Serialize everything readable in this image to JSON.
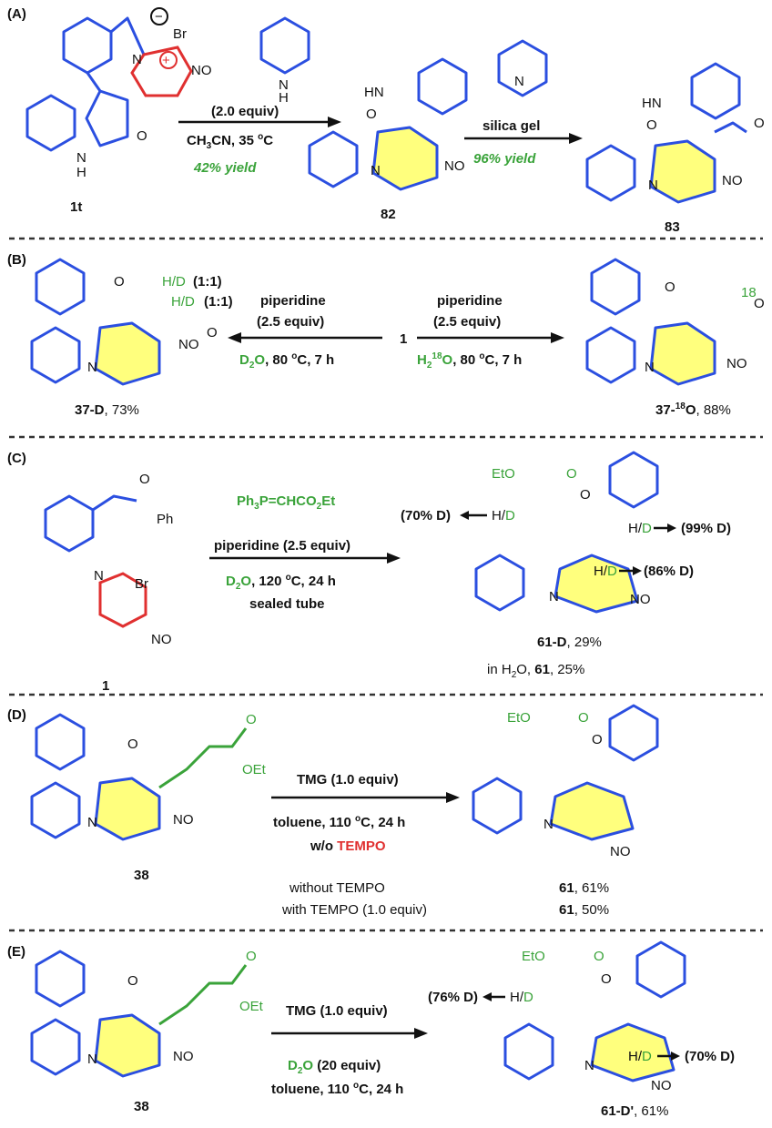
{
  "panels": {
    "A": {
      "label": "(A)",
      "reagent1": "(2.0 equiv)",
      "cond1": "CH3CN, 35 °C",
      "yield1": "42% yield",
      "reagent2": "silica gel",
      "yield2": "96% yield",
      "cmpd_start": "1t",
      "cmpd_mid": "82",
      "cmpd_end": "83"
    },
    "B": {
      "label": "(B)",
      "left_reagent": "piperidine",
      "left_equiv": "(2.5 equiv)",
      "left_cond": "D2O, 80 °C, 7 h",
      "right_reagent": "piperidine",
      "right_equiv": "(2.5 equiv)",
      "right_cond": "H2 18O, 80 °C, 7 h",
      "center": "1",
      "ratio1": "(1:1)",
      "ratio2": "(1:1)",
      "left_product": "37-D, 73%",
      "right_product": "37-18O, 88%"
    },
    "C": {
      "label": "(C)",
      "reagent_top": "Ph3P=CHCO2Et",
      "reagent": "piperidine (2.5 equiv)",
      "cond": "D2O, 120 °C, 24 h",
      "vessel": "sealed tube",
      "start": "1",
      "d1": "(70% D)",
      "d2": "(99% D)",
      "d3": "(86% D)",
      "product": "61-D, 29%",
      "note": "in H2O, 61, 25%"
    },
    "D": {
      "label": "(D)",
      "reagent": "TMG (1.0 equiv)",
      "cond": "toluene, 110 °C, 24 h",
      "wo": "w/o",
      "tempo": "TEMPO",
      "start": "38",
      "row1_label": "without TEMPO",
      "row1_val": "61, 61%",
      "row2_label": "with TEMPO (1.0 equiv)",
      "row2_val": "61, 50%"
    },
    "E": {
      "label": "(E)",
      "reagent": "TMG (1.0 equiv)",
      "cond1": "D2O (20 equiv)",
      "cond2": "toluene, 110 °C, 24 h",
      "start": "38",
      "d1": "(76% D)",
      "d2": "(70% D)",
      "product": "61-D', 61%"
    }
  },
  "colors": {
    "blue": "#2b4fe0",
    "red": "#e03030",
    "green": "#3aa33a",
    "yellow": "#ffff66"
  }
}
